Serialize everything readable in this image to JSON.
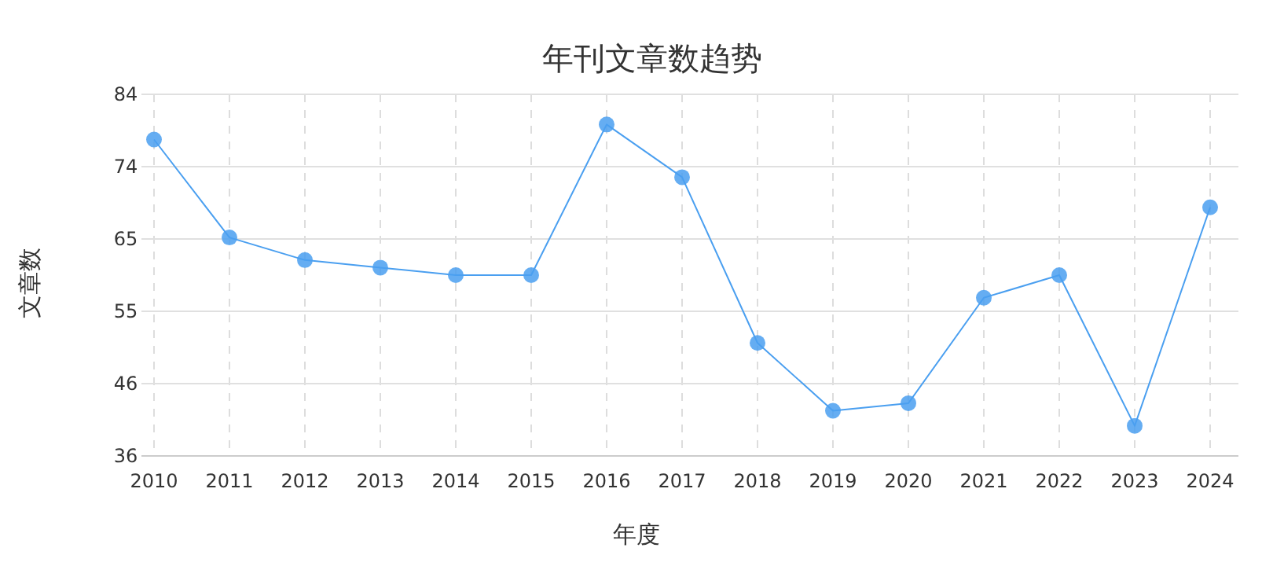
{
  "chart_data": {
    "type": "line",
    "title": "年刊文章数趋势",
    "xlabel": "年度",
    "ylabel": "文章数",
    "categories": [
      "2010",
      "2011",
      "2012",
      "2013",
      "2014",
      "2015",
      "2016",
      "2017",
      "2018",
      "2019",
      "2020",
      "2021",
      "2022",
      "2023",
      "2024"
    ],
    "series": [
      {
        "color": "#4a9ff0",
        "values": [
          78,
          65,
          62,
          61,
          60,
          60,
          80,
          73,
          51,
          42,
          43,
          57,
          60,
          40,
          69
        ]
      }
    ],
    "ylim": [
      36,
      84
    ],
    "yticks": [
      36,
      {
        "value": 45.6,
        "label": "46"
      },
      {
        "value": 55.2,
        "label": "55"
      },
      {
        "value": 64.8,
        "label": "65"
      },
      {
        "value": 74.4,
        "label": "74"
      },
      84
    ],
    "grid": true,
    "marker": "circle",
    "line_style": "solid"
  }
}
